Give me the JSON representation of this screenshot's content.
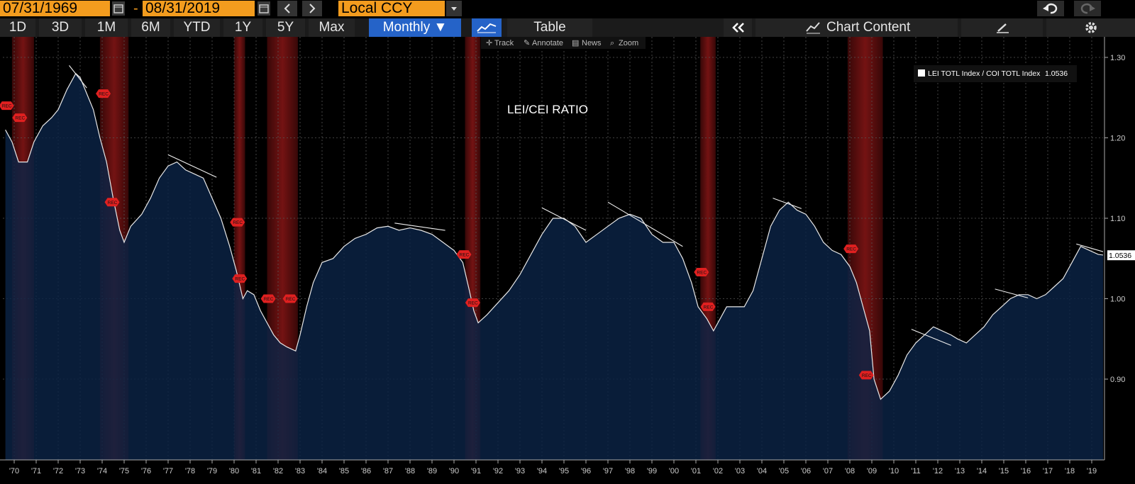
{
  "toolbar": {
    "start_date": "07/31/1969",
    "separator": "-",
    "end_date": "08/31/2019",
    "currency": "Local CCY",
    "periods": [
      "1D",
      "3D",
      "1M",
      "6M",
      "YTD",
      "1Y",
      "5Y",
      "Max"
    ],
    "frequency": "Monthly",
    "table_label": "Table",
    "chart_content_label": "Chart Content"
  },
  "chart_tools": [
    "Track",
    "Annotate",
    "News",
    "Zoom"
  ],
  "chart_data": {
    "type": "area",
    "title": "LEI/CEI RATIO",
    "legend": {
      "entry": "LEI TOTL Index / COI TOTL Index",
      "last_value": "1.0536",
      "placement": "top-right"
    },
    "last_value_label": "1.0536",
    "recession_label": "REC",
    "ylim": [
      0.8,
      1.32
    ],
    "y_ticks": [
      "0.90",
      "1.00",
      "1.10",
      "1.20",
      "1.30"
    ],
    "x_ticks": [
      "'70",
      "'71",
      "'72",
      "'73",
      "'74",
      "'75",
      "'76",
      "'77",
      "'78",
      "'79",
      "'80",
      "'81",
      "'82",
      "'83",
      "'84",
      "'85",
      "'86",
      "'87",
      "'88",
      "'89",
      "'90",
      "'91",
      "'92",
      "'93",
      "'94",
      "'95",
      "'96",
      "'97",
      "'98",
      "'99",
      "'00",
      "'01",
      "'02",
      "'03",
      "'04",
      "'05",
      "'06",
      "'07",
      "'08",
      "'09",
      "'10",
      "'11",
      "'12",
      "'13",
      "'14",
      "'15",
      "'16",
      "'17",
      "'18",
      "'19"
    ],
    "series": [
      {
        "name": "LEI TOTL Index / COI TOTL Index",
        "x": [
          1969.6,
          1969.9,
          1970.2,
          1970.6,
          1970.9,
          1971.3,
          1971.7,
          1972.0,
          1972.4,
          1972.8,
          1973.0,
          1973.3,
          1973.6,
          1973.9,
          1974.2,
          1974.5,
          1974.8,
          1975.0,
          1975.3,
          1975.8,
          1976.2,
          1976.6,
          1977.0,
          1977.4,
          1977.8,
          1978.2,
          1978.6,
          1979.0,
          1979.4,
          1979.8,
          1980.1,
          1980.4,
          1980.6,
          1980.9,
          1981.2,
          1981.5,
          1981.8,
          1982.1,
          1982.4,
          1982.8,
          1983.0,
          1983.3,
          1983.6,
          1984.0,
          1984.5,
          1985.0,
          1985.5,
          1986.0,
          1986.5,
          1987.0,
          1987.5,
          1988.0,
          1988.5,
          1989.0,
          1989.5,
          1990.0,
          1990.4,
          1990.7,
          1990.9,
          1991.1,
          1991.5,
          1992.0,
          1992.5,
          1993.0,
          1993.5,
          1994.0,
          1994.5,
          1995.0,
          1995.5,
          1996.0,
          1996.5,
          1997.0,
          1997.5,
          1998.0,
          1998.5,
          1999.0,
          1999.5,
          2000.0,
          2000.4,
          2000.8,
          2001.1,
          2001.5,
          2001.8,
          2002.0,
          2002.4,
          2002.8,
          2003.2,
          2003.6,
          2004.0,
          2004.4,
          2004.8,
          2005.2,
          2005.6,
          2006.0,
          2006.4,
          2006.8,
          2007.2,
          2007.6,
          2008.0,
          2008.3,
          2008.6,
          2008.9,
          2009.1,
          2009.4,
          2009.8,
          2010.2,
          2010.6,
          2011.0,
          2011.4,
          2011.8,
          2012.2,
          2012.6,
          2012.9,
          2013.3,
          2013.7,
          2014.1,
          2014.5,
          2014.9,
          2015.3,
          2015.7,
          2016.1,
          2016.5,
          2016.9,
          2017.3,
          2017.7,
          2018.1,
          2018.5,
          2018.9,
          2019.3,
          2019.6
        ],
        "y": [
          1.21,
          1.195,
          1.17,
          1.17,
          1.195,
          1.215,
          1.225,
          1.235,
          1.26,
          1.28,
          1.275,
          1.255,
          1.235,
          1.2,
          1.17,
          1.125,
          1.085,
          1.07,
          1.09,
          1.105,
          1.125,
          1.15,
          1.165,
          1.17,
          1.16,
          1.155,
          1.15,
          1.125,
          1.1,
          1.065,
          1.035,
          1.0,
          1.01,
          1.005,
          0.985,
          0.97,
          0.955,
          0.945,
          0.94,
          0.935,
          0.955,
          0.99,
          1.02,
          1.045,
          1.05,
          1.065,
          1.075,
          1.08,
          1.088,
          1.09,
          1.085,
          1.088,
          1.085,
          1.08,
          1.07,
          1.06,
          1.045,
          1.01,
          0.985,
          0.97,
          0.98,
          0.995,
          1.01,
          1.03,
          1.055,
          1.08,
          1.1,
          1.1,
          1.09,
          1.07,
          1.08,
          1.09,
          1.1,
          1.105,
          1.1,
          1.08,
          1.07,
          1.07,
          1.05,
          1.02,
          0.99,
          0.975,
          0.96,
          0.97,
          0.99,
          0.99,
          0.99,
          1.01,
          1.05,
          1.09,
          1.11,
          1.12,
          1.11,
          1.105,
          1.09,
          1.07,
          1.06,
          1.055,
          1.04,
          1.02,
          0.99,
          0.96,
          0.9,
          0.875,
          0.885,
          0.905,
          0.93,
          0.945,
          0.955,
          0.965,
          0.96,
          0.955,
          0.95,
          0.945,
          0.955,
          0.965,
          0.98,
          0.99,
          1.0,
          1.005,
          1.005,
          1.0,
          1.005,
          1.015,
          1.025,
          1.045,
          1.065,
          1.06,
          1.055,
          1.054
        ]
      }
    ],
    "recessions": [
      [
        1969.9,
        1970.9
      ],
      [
        1973.9,
        1975.2
      ],
      [
        1980.0,
        1980.5
      ],
      [
        1981.5,
        1982.9
      ],
      [
        1990.5,
        1991.2
      ],
      [
        2001.2,
        2001.9
      ],
      [
        2007.9,
        2009.5
      ]
    ],
    "trend_lines": [
      [
        [
          1972.5,
          1.29
        ],
        [
          1973.3,
          1.262
        ]
      ],
      [
        [
          1977.0,
          1.179
        ],
        [
          1979.2,
          1.151
        ]
      ],
      [
        [
          1987.3,
          1.094
        ],
        [
          1989.6,
          1.085
        ]
      ],
      [
        [
          1994.0,
          1.113
        ],
        [
          1996.0,
          1.085
        ]
      ],
      [
        [
          1997.0,
          1.12
        ],
        [
          2000.4,
          1.065
        ]
      ],
      [
        [
          2004.5,
          1.125
        ],
        [
          2005.8,
          1.112
        ]
      ],
      [
        [
          2010.8,
          0.962
        ],
        [
          2012.6,
          0.942
        ]
      ],
      [
        [
          2014.6,
          1.012
        ],
        [
          2016.1,
          1.001
        ]
      ],
      [
        [
          2018.3,
          1.068
        ],
        [
          2019.7,
          1.057
        ]
      ]
    ],
    "rec_markers": [
      [
        1969.7,
        1.24
      ],
      [
        1970.3,
        1.225
      ],
      [
        1974.1,
        1.255
      ],
      [
        1974.5,
        1.12
      ],
      [
        1980.2,
        1.095
      ],
      [
        1980.3,
        1.025
      ],
      [
        1981.6,
        1.0
      ],
      [
        1982.6,
        1.0
      ],
      [
        1990.5,
        1.055
      ],
      [
        1990.9,
        0.995
      ],
      [
        2001.3,
        1.033
      ],
      [
        2001.6,
        0.99
      ],
      [
        2008.1,
        1.062
      ],
      [
        2008.8,
        0.905
      ]
    ],
    "grid": true
  }
}
